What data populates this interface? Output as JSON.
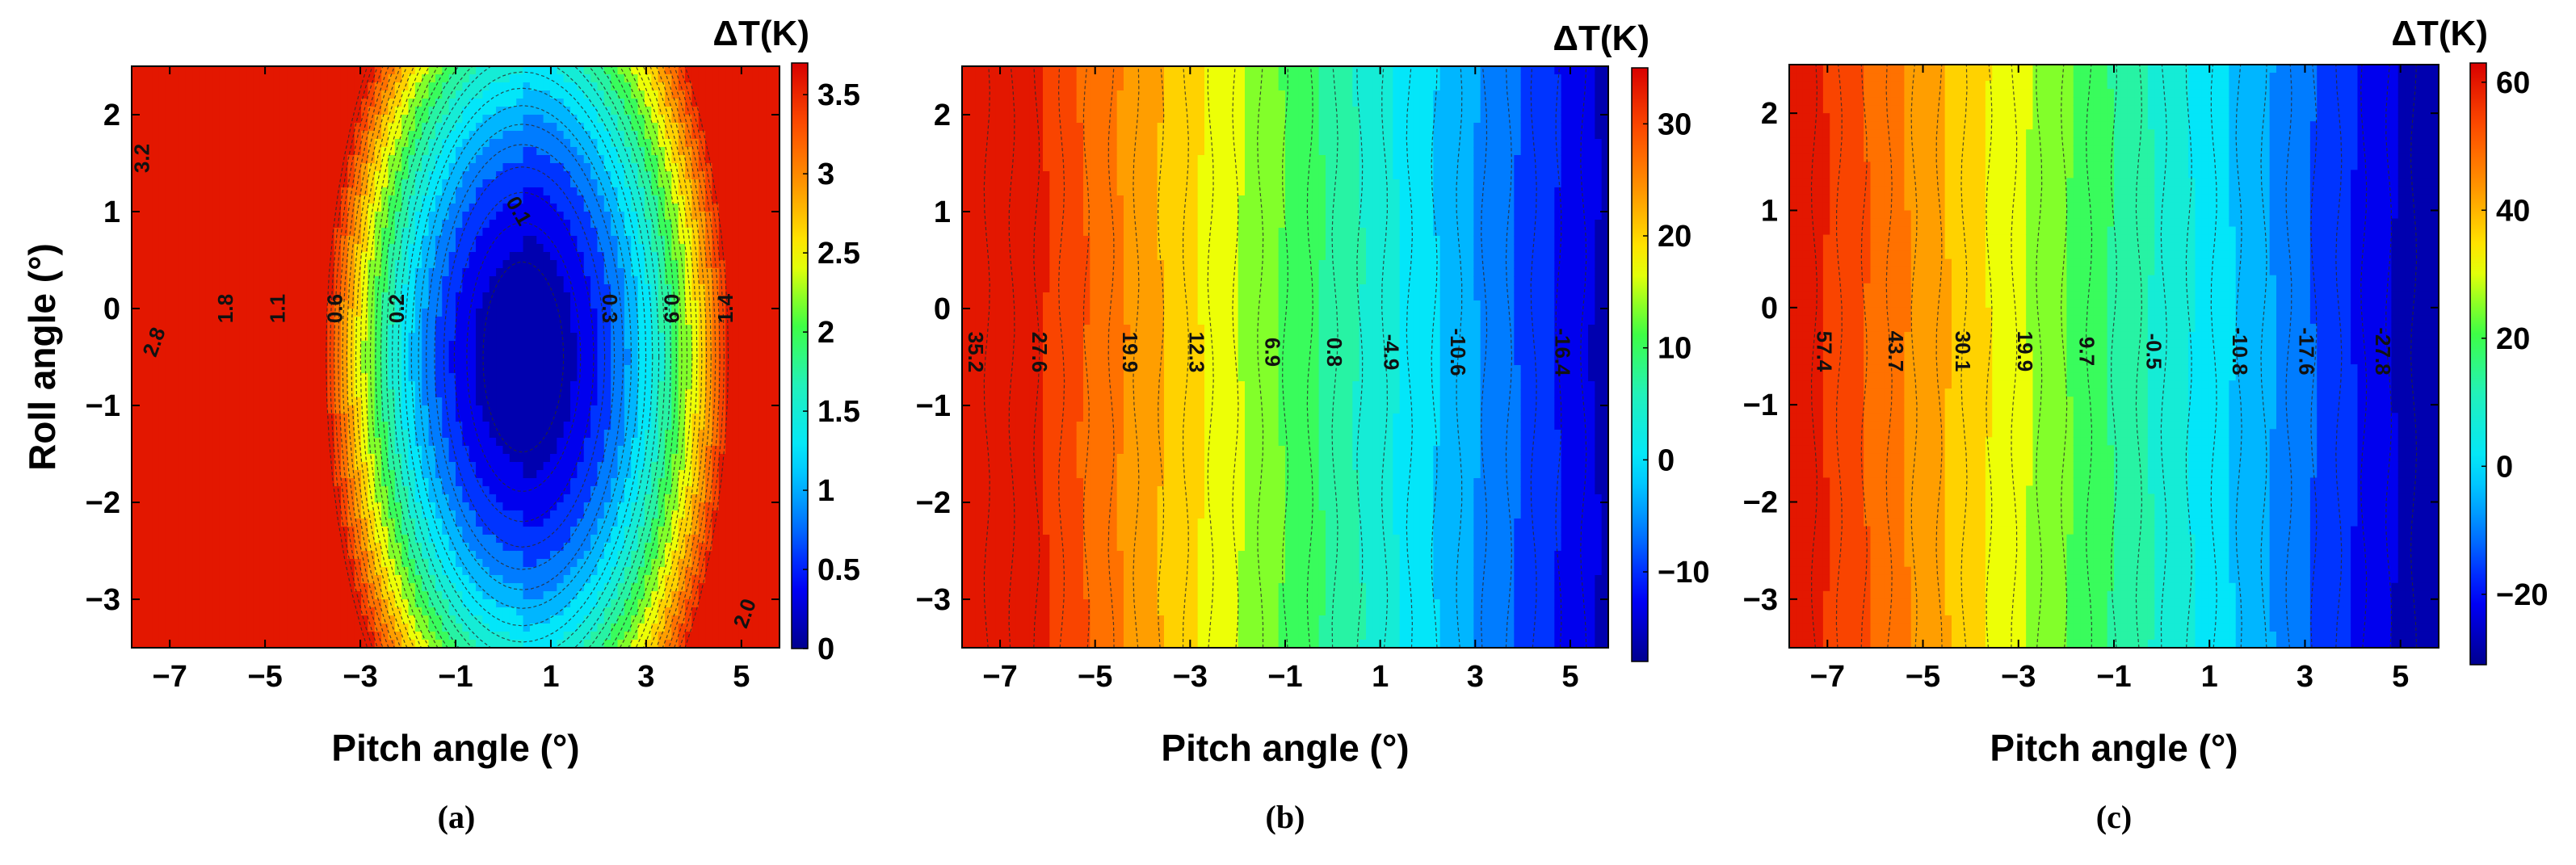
{
  "figure": {
    "colormap": [
      "#00008f",
      "#0000ff",
      "#0080ff",
      "#00e5ff",
      "#20f0c0",
      "#40ff40",
      "#ffff00",
      "#ffa000",
      "#ff5000",
      "#d80000"
    ]
  },
  "chart_data": [
    {
      "type": "contour",
      "caption": "(a)",
      "xlabel": "Pitch angle (°)",
      "ylabel": "Roll angle (°)",
      "colorbar_title": "ΔT(K)",
      "xlim": [
        -7.8,
        5.8
      ],
      "ylim": [
        -3.5,
        2.5
      ],
      "xticks": [
        -7,
        -5,
        -3,
        -1,
        1,
        3,
        5
      ],
      "xtick_labels": [
        "−7",
        "−5",
        "−3",
        "−1",
        "1",
        "3",
        "5"
      ],
      "yticks": [
        -3,
        -2,
        -1,
        0,
        1,
        2
      ],
      "ytick_labels": [
        "−3",
        "−2",
        "−1",
        "0",
        "1",
        "2"
      ],
      "clim": [
        0,
        3.7
      ],
      "colorbar_ticks": [
        0,
        0.5,
        1,
        1.5,
        2,
        2.5,
        3,
        3.5
      ],
      "colorbar_tick_labels": [
        "0",
        "0.5",
        "1",
        "1.5",
        "2",
        "2.5",
        "3",
        "3.5"
      ],
      "field": {
        "model": "bowl",
        "center": [
          0.4,
          -0.5
        ],
        "sx": 4.2,
        "sy": 5.0,
        "k_left": 0.0,
        "k_right": -0.05,
        "slope": 0.0,
        "offset": 0.0,
        "scale": 1.0
      },
      "contour_labels": [
        {
          "text": "3.2",
          "x": -7.55,
          "y": 1.55,
          "angle": -90
        },
        {
          "text": "2.8",
          "x": -7.3,
          "y": -0.35,
          "angle": -70
        },
        {
          "text": "1.8",
          "x": -5.8,
          "y": 0.0,
          "angle": -90
        },
        {
          "text": "1.1",
          "x": -4.7,
          "y": 0.0,
          "angle": -90
        },
        {
          "text": "0.6",
          "x": -3.5,
          "y": 0.0,
          "angle": -90
        },
        {
          "text": "0.2",
          "x": -2.2,
          "y": 0.0,
          "angle": -90
        },
        {
          "text": "0.1",
          "x": 0.3,
          "y": 1.0,
          "angle": 60
        },
        {
          "text": "0.3",
          "x": 2.2,
          "y": 0.0,
          "angle": 90
        },
        {
          "text": "0.9",
          "x": 3.5,
          "y": 0.0,
          "angle": 90
        },
        {
          "text": "1.4",
          "x": 4.7,
          "y": 0.0,
          "angle": -90
        },
        {
          "text": "2.0",
          "x": 5.1,
          "y": -3.15,
          "angle": -70
        }
      ]
    },
    {
      "type": "contour",
      "caption": "(b)",
      "xlabel": "Pitch angle (°)",
      "ylabel": "",
      "colorbar_title": "ΔT(K)",
      "xlim": [
        -7.8,
        5.8
      ],
      "ylim": [
        -3.5,
        2.5
      ],
      "xticks": [
        -7,
        -5,
        -3,
        -1,
        1,
        3,
        5
      ],
      "xtick_labels": [
        "−7",
        "−5",
        "−3",
        "−1",
        "1",
        "3",
        "5"
      ],
      "yticks": [
        -3,
        -2,
        -1,
        0,
        1,
        2
      ],
      "ytick_labels": [
        "−3",
        "−2",
        "−1",
        "0",
        "1",
        "2"
      ],
      "clim": [
        -18,
        35
      ],
      "colorbar_ticks": [
        -10,
        0,
        10,
        20,
        30
      ],
      "colorbar_tick_labels": [
        "−10",
        "0",
        "10",
        "20",
        "30"
      ],
      "field": {
        "model": "linear",
        "slope": -4.0,
        "offset": 7.4,
        "scale": 1.0
      },
      "contour_labels": [
        {
          "text": "35.2",
          "x": -7.55,
          "y": -0.45,
          "angle": 90
        },
        {
          "text": "27.6",
          "x": -6.2,
          "y": -0.45,
          "angle": 90
        },
        {
          "text": "19.9",
          "x": -4.3,
          "y": -0.45,
          "angle": 90
        },
        {
          "text": "12.3",
          "x": -2.9,
          "y": -0.45,
          "angle": 90
        },
        {
          "text": "6.9",
          "x": -1.3,
          "y": -0.45,
          "angle": 90
        },
        {
          "text": "0.8",
          "x": 0.0,
          "y": -0.45,
          "angle": 90
        },
        {
          "text": "-4.9",
          "x": 1.2,
          "y": -0.45,
          "angle": 90
        },
        {
          "text": "-10.6",
          "x": 2.6,
          "y": -0.45,
          "angle": 90
        },
        {
          "text": "-16.4",
          "x": 4.8,
          "y": -0.45,
          "angle": 90
        }
      ]
    },
    {
      "type": "contour",
      "caption": "(c)",
      "xlabel": "Pitch angle (°)",
      "ylabel": "",
      "colorbar_title": "ΔT(K)",
      "xlim": [
        -7.8,
        5.8
      ],
      "ylim": [
        -3.5,
        2.5
      ],
      "xticks": [
        -7,
        -5,
        -3,
        -1,
        1,
        3,
        5
      ],
      "xtick_labels": [
        "−7",
        "−5",
        "−3",
        "−1",
        "1",
        "3",
        "5"
      ],
      "yticks": [
        -3,
        -2,
        -1,
        0,
        1,
        2
      ],
      "ytick_labels": [
        "−3",
        "−2",
        "−1",
        "0",
        "1",
        "2"
      ],
      "clim": [
        -31,
        63
      ],
      "colorbar_ticks": [
        -20,
        0,
        20,
        40,
        60
      ],
      "colorbar_tick_labels": [
        "−20",
        "0",
        "20",
        "40",
        "60"
      ],
      "field": {
        "model": "linear",
        "slope": -6.9,
        "offset": 8.5,
        "scale": 1.0
      },
      "contour_labels": [
        {
          "text": "57.4",
          "x": -7.1,
          "y": -0.45,
          "angle": 90
        },
        {
          "text": "43.7",
          "x": -5.6,
          "y": -0.45,
          "angle": 90
        },
        {
          "text": "30.1",
          "x": -4.2,
          "y": -0.45,
          "angle": 90
        },
        {
          "text": "19.9",
          "x": -2.9,
          "y": -0.45,
          "angle": 90
        },
        {
          "text": "9.7",
          "x": -1.6,
          "y": -0.45,
          "angle": 90
        },
        {
          "text": "-0.5",
          "x": -0.2,
          "y": -0.45,
          "angle": 90
        },
        {
          "text": "-10.8",
          "x": 1.6,
          "y": -0.45,
          "angle": 90
        },
        {
          "text": "-17.6",
          "x": 3.0,
          "y": -0.45,
          "angle": 90
        },
        {
          "text": "-27.8",
          "x": 4.6,
          "y": -0.45,
          "angle": 90
        }
      ]
    }
  ]
}
